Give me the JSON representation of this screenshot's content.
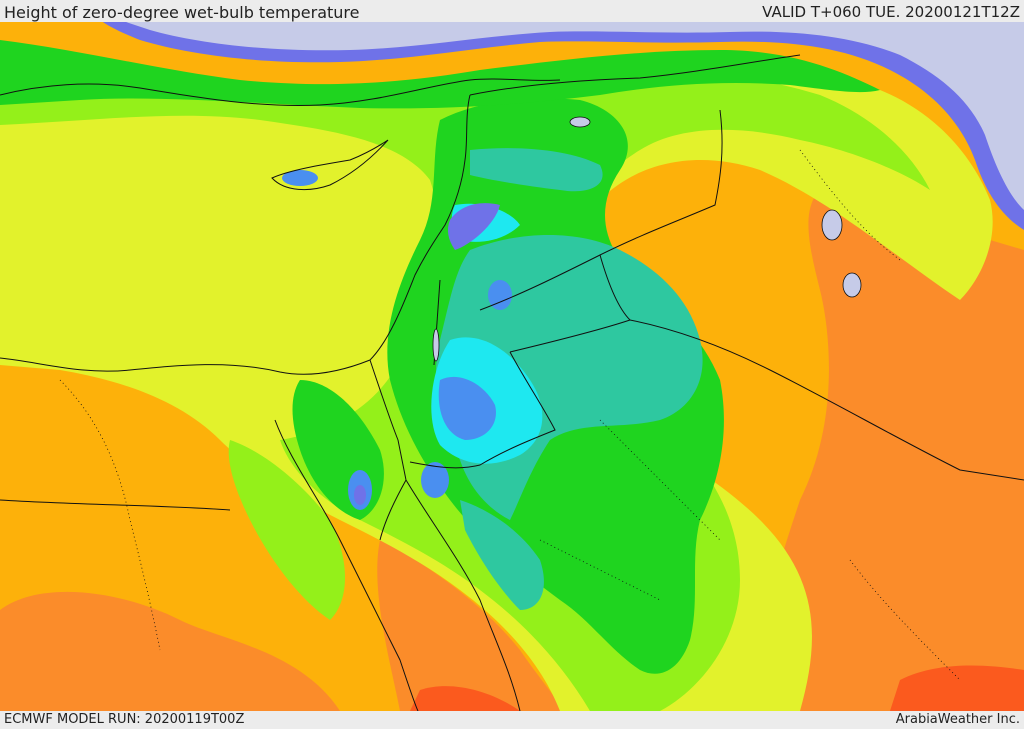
{
  "header": {
    "title": "Height of zero-degree wet-bulb temperature",
    "valid_time": "VALID T+060 TUE. 20200121T12Z"
  },
  "footer": {
    "model_run": "ECMWF MODEL RUN: 20200119T00Z",
    "credit": "ArabiaWeather Inc."
  },
  "palette": {
    "cold_gray": "#c6cbe8",
    "deep_blue": "#6f72e8",
    "blue": "#4a8ff0",
    "cyan": "#1ee8f0",
    "teal": "#2ec8a0",
    "green": "#1fd41f",
    "light_green": "#94f01a",
    "yellow_green": "#e2f22c",
    "orange": "#fdb10a",
    "dark_orange": "#fb8c2a",
    "red_orange": "#fb5a1e",
    "border": "#111111"
  }
}
